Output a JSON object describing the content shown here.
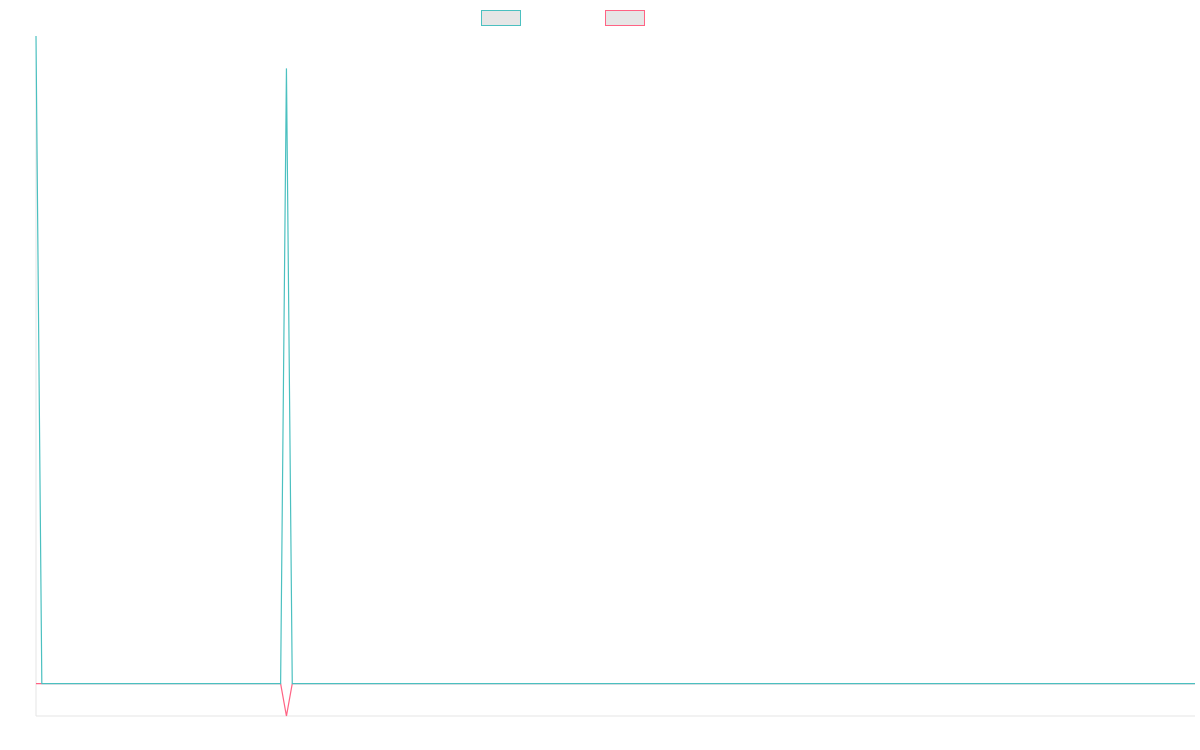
{
  "chart_data": {
    "type": "line",
    "title": "",
    "xlabel": "",
    "ylabel": "",
    "grid": false,
    "legend": "top-center",
    "x_count": 200,
    "ylim": [
      -10,
      200
    ],
    "series": [
      {
        "name": "",
        "color": "#4bc0c0",
        "fill": "#e6e6e6",
        "points": [
          {
            "x": 0,
            "y": 200
          },
          {
            "x": 1,
            "y": 0
          },
          {
            "x": 42,
            "y": 0
          },
          {
            "x": 43,
            "y": 190
          },
          {
            "x": 44,
            "y": 0
          },
          {
            "x": 199,
            "y": 0
          }
        ]
      },
      {
        "name": "",
        "color": "#ff6384",
        "fill": "#e6e6e6",
        "points": [
          {
            "x": 0,
            "y": 0
          },
          {
            "x": 42,
            "y": 0
          },
          {
            "x": 43,
            "y": -10
          },
          {
            "x": 44,
            "y": 0
          },
          {
            "x": 199,
            "y": 0
          }
        ]
      }
    ]
  }
}
